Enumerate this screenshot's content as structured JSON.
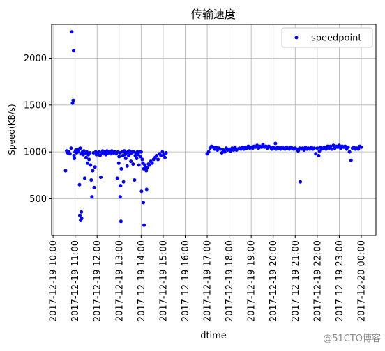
{
  "chart_data": {
    "type": "scatter",
    "title": "传输速度",
    "xlabel": "dtime",
    "ylabel": "Speed(KB/s)",
    "xlim": [
      "2017-12-19 09:56",
      "2017-12-20 00:40"
    ],
    "ylim": [
      110,
      2360
    ],
    "yticks": [
      500,
      1000,
      1500,
      2000
    ],
    "xticks": [
      "2017-12-19 10:00",
      "2017-12-19 11:00",
      "2017-12-19 12:00",
      "2017-12-19 13:00",
      "2017-12-19 14:00",
      "2017-12-19 15:00",
      "2017-12-19 16:00",
      "2017-12-19 17:00",
      "2017-12-19 18:00",
      "2017-12-19 19:00",
      "2017-12-19 20:00",
      "2017-12-19 21:00",
      "2017-12-19 22:00",
      "2017-12-19 23:00",
      "2017-12-20 00:00"
    ],
    "grid": true,
    "legend_position": "top-right",
    "marker_color": "#0000ff",
    "series": [
      {
        "name": "speedpoint",
        "points": [
          [
            "2017-12-19 10:34",
            800
          ],
          [
            "2017-12-19 10:37",
            1010
          ],
          [
            "2017-12-19 10:40",
            990
          ],
          [
            "2017-12-19 10:43",
            1000
          ],
          [
            "2017-12-19 10:46",
            980
          ],
          [
            "2017-12-19 10:49",
            1040
          ],
          [
            "2017-12-19 10:51",
            2280
          ],
          [
            "2017-12-19 10:53",
            1520
          ],
          [
            "2017-12-19 10:55",
            1550
          ],
          [
            "2017-12-19 10:56",
            2080
          ],
          [
            "2017-12-19 10:57",
            960
          ],
          [
            "2017-12-19 10:58",
            930
          ],
          [
            "2017-12-19 11:00",
            1000
          ],
          [
            "2017-12-19 11:02",
            1020
          ],
          [
            "2017-12-19 11:04",
            990
          ],
          [
            "2017-12-19 11:06",
            1010
          ],
          [
            "2017-12-19 11:08",
            1000
          ],
          [
            "2017-12-19 11:10",
            1030
          ],
          [
            "2017-12-19 11:12",
            650
          ],
          [
            "2017-12-19 11:13",
            320
          ],
          [
            "2017-12-19 11:14",
            1040
          ],
          [
            "2017-12-19 11:15",
            270
          ],
          [
            "2017-12-19 11:16",
            980
          ],
          [
            "2017-12-19 11:17",
            360
          ],
          [
            "2017-12-19 11:18",
            290
          ],
          [
            "2017-12-19 11:20",
            1000
          ],
          [
            "2017-12-19 11:22",
            970
          ],
          [
            "2017-12-19 11:24",
            1010
          ],
          [
            "2017-12-19 11:26",
            720
          ],
          [
            "2017-12-19 11:28",
            990
          ],
          [
            "2017-12-19 11:30",
            940
          ],
          [
            "2017-12-19 11:32",
            1000
          ],
          [
            "2017-12-19 11:34",
            880
          ],
          [
            "2017-12-19 11:36",
            970
          ],
          [
            "2017-12-19 11:38",
            920
          ],
          [
            "2017-12-19 11:40",
            990
          ],
          [
            "2017-12-19 11:42",
            860
          ],
          [
            "2017-12-19 11:44",
            700
          ],
          [
            "2017-12-19 11:46",
            520
          ],
          [
            "2017-12-19 11:48",
            800
          ],
          [
            "2017-12-19 11:50",
            990
          ],
          [
            "2017-12-19 11:52",
            620
          ],
          [
            "2017-12-19 11:54",
            840
          ],
          [
            "2017-12-19 11:56",
            1000
          ],
          [
            "2017-12-19 11:58",
            970
          ],
          [
            "2017-12-19 12:02",
            980
          ],
          [
            "2017-12-19 12:05",
            1000
          ],
          [
            "2017-12-19 12:08",
            960
          ],
          [
            "2017-12-19 12:10",
            730
          ],
          [
            "2017-12-19 12:12",
            990
          ],
          [
            "2017-12-19 12:15",
            1010
          ],
          [
            "2017-12-19 12:18",
            980
          ],
          [
            "2017-12-19 12:21",
            1000
          ],
          [
            "2017-12-19 12:24",
            970
          ],
          [
            "2017-12-19 12:27",
            1010
          ],
          [
            "2017-12-19 12:30",
            990
          ],
          [
            "2017-12-19 12:34",
            1000
          ],
          [
            "2017-12-19 12:37",
            980
          ],
          [
            "2017-12-19 12:40",
            1010
          ],
          [
            "2017-12-19 12:44",
            990
          ],
          [
            "2017-12-19 12:48",
            1000
          ],
          [
            "2017-12-19 12:52",
            980
          ],
          [
            "2017-12-19 12:55",
            720
          ],
          [
            "2017-12-19 12:57",
            1000
          ],
          [
            "2017-12-19 12:59",
            880
          ],
          [
            "2017-12-19 13:00",
            950
          ],
          [
            "2017-12-19 13:02",
            990
          ],
          [
            "2017-12-19 13:03",
            520
          ],
          [
            "2017-12-19 13:04",
            640
          ],
          [
            "2017-12-19 13:05",
            260
          ],
          [
            "2017-12-19 13:06",
            820
          ],
          [
            "2017-12-19 13:08",
            1000
          ],
          [
            "2017-12-19 13:10",
            960
          ],
          [
            "2017-12-19 13:12",
            680
          ],
          [
            "2017-12-19 13:14",
            1010
          ],
          [
            "2017-12-19 13:16",
            970
          ],
          [
            "2017-12-19 13:18",
            930
          ],
          [
            "2017-12-19 13:20",
            990
          ],
          [
            "2017-12-19 13:22",
            850
          ],
          [
            "2017-12-19 13:24",
            1000
          ],
          [
            "2017-12-19 13:26",
            960
          ],
          [
            "2017-12-19 13:28",
            1010
          ],
          [
            "2017-12-19 13:30",
            980
          ],
          [
            "2017-12-19 13:32",
            900
          ],
          [
            "2017-12-19 13:34",
            990
          ],
          [
            "2017-12-19 13:36",
            1000
          ],
          [
            "2017-12-19 13:38",
            870
          ],
          [
            "2017-12-19 13:40",
            1000
          ],
          [
            "2017-12-19 13:42",
            700
          ],
          [
            "2017-12-19 13:44",
            960
          ],
          [
            "2017-12-19 13:46",
            990
          ],
          [
            "2017-12-19 13:48",
            930
          ],
          [
            "2017-12-19 13:50",
            1000
          ],
          [
            "2017-12-19 13:52",
            970
          ],
          [
            "2017-12-19 13:54",
            860
          ],
          [
            "2017-12-19 13:56",
            1000
          ],
          [
            "2017-12-19 13:58",
            950
          ],
          [
            "2017-12-19 14:00",
            1000
          ],
          [
            "2017-12-19 14:01",
            580
          ],
          [
            "2017-12-19 14:03",
            920
          ],
          [
            "2017-12-19 14:05",
            880
          ],
          [
            "2017-12-19 14:06",
            460
          ],
          [
            "2017-12-19 14:07",
            820
          ],
          [
            "2017-12-19 14:08",
            220
          ],
          [
            "2017-12-19 14:10",
            860
          ],
          [
            "2017-12-19 14:12",
            840
          ],
          [
            "2017-12-19 14:14",
            800
          ],
          [
            "2017-12-19 14:15",
            600
          ],
          [
            "2017-12-19 14:17",
            830
          ],
          [
            "2017-12-19 14:20",
            870
          ],
          [
            "2017-12-19 14:23",
            860
          ],
          [
            "2017-12-19 14:26",
            900
          ],
          [
            "2017-12-19 14:30",
            880
          ],
          [
            "2017-12-19 14:34",
            920
          ],
          [
            "2017-12-19 14:38",
            940
          ],
          [
            "2017-12-19 14:42",
            960
          ],
          [
            "2017-12-19 14:46",
            920
          ],
          [
            "2017-12-19 14:50",
            980
          ],
          [
            "2017-12-19 14:54",
            960
          ],
          [
            "2017-12-19 14:58",
            1000
          ],
          [
            "2017-12-19 15:02",
            970
          ],
          [
            "2017-12-19 15:05",
            940
          ],
          [
            "2017-12-19 15:08",
            990
          ],
          [
            "2017-12-19 17:00",
            980
          ],
          [
            "2017-12-19 17:04",
            1000
          ],
          [
            "2017-12-19 17:08",
            1040
          ],
          [
            "2017-12-19 17:12",
            1060
          ],
          [
            "2017-12-19 17:16",
            1050
          ],
          [
            "2017-12-19 17:20",
            1030
          ],
          [
            "2017-12-19 17:24",
            1050
          ],
          [
            "2017-12-19 17:28",
            1020
          ],
          [
            "2017-12-19 17:32",
            1040
          ],
          [
            "2017-12-19 17:36",
            1030
          ],
          [
            "2017-12-19 17:40",
            990
          ],
          [
            "2017-12-19 17:44",
            1020
          ],
          [
            "2017-12-19 17:48",
            1000
          ],
          [
            "2017-12-19 17:52",
            1040
          ],
          [
            "2017-12-19 17:56",
            1020
          ],
          [
            "2017-12-19 18:00",
            1030
          ],
          [
            "2017-12-19 18:04",
            1010
          ],
          [
            "2017-12-19 18:08",
            1040
          ],
          [
            "2017-12-19 18:12",
            1020
          ],
          [
            "2017-12-19 18:16",
            1050
          ],
          [
            "2017-12-19 18:20",
            1020
          ],
          [
            "2017-12-19 18:24",
            1030
          ],
          [
            "2017-12-19 18:28",
            1040
          ],
          [
            "2017-12-19 18:32",
            1030
          ],
          [
            "2017-12-19 18:36",
            1050
          ],
          [
            "2017-12-19 18:40",
            1030
          ],
          [
            "2017-12-19 18:44",
            1050
          ],
          [
            "2017-12-19 18:48",
            1040
          ],
          [
            "2017-12-19 18:52",
            1060
          ],
          [
            "2017-12-19 18:56",
            1040
          ],
          [
            "2017-12-19 19:00",
            1050
          ],
          [
            "2017-12-19 19:04",
            1040
          ],
          [
            "2017-12-19 19:08",
            1060
          ],
          [
            "2017-12-19 19:12",
            1050
          ],
          [
            "2017-12-19 19:16",
            1070
          ],
          [
            "2017-12-19 19:20",
            1040
          ],
          [
            "2017-12-19 19:24",
            1060
          ],
          [
            "2017-12-19 19:28",
            1050
          ],
          [
            "2017-12-19 19:32",
            1080
          ],
          [
            "2017-12-19 19:36",
            1050
          ],
          [
            "2017-12-19 19:40",
            1060
          ],
          [
            "2017-12-19 19:44",
            1040
          ],
          [
            "2017-12-19 19:48",
            1060
          ],
          [
            "2017-12-19 19:52",
            1050
          ],
          [
            "2017-12-19 19:56",
            1030
          ],
          [
            "2017-12-19 20:00",
            1050
          ],
          [
            "2017-12-19 20:04",
            1040
          ],
          [
            "2017-12-19 20:06",
            1090
          ],
          [
            "2017-12-19 20:08",
            1030
          ],
          [
            "2017-12-19 20:12",
            1050
          ],
          [
            "2017-12-19 20:16",
            1040
          ],
          [
            "2017-12-19 20:20",
            1030
          ],
          [
            "2017-12-19 20:24",
            1050
          ],
          [
            "2017-12-19 20:28",
            1040
          ],
          [
            "2017-12-19 20:32",
            1030
          ],
          [
            "2017-12-19 20:36",
            1050
          ],
          [
            "2017-12-19 20:40",
            1040
          ],
          [
            "2017-12-19 20:44",
            1030
          ],
          [
            "2017-12-19 20:48",
            1050
          ],
          [
            "2017-12-19 20:52",
            1040
          ],
          [
            "2017-12-19 20:56",
            1030
          ],
          [
            "2017-12-19 21:00",
            1040
          ],
          [
            "2017-12-19 21:04",
            1030
          ],
          [
            "2017-12-19 21:08",
            1010
          ],
          [
            "2017-12-19 21:12",
            1040
          ],
          [
            "2017-12-19 21:14",
            680
          ],
          [
            "2017-12-19 21:16",
            1030
          ],
          [
            "2017-12-19 21:20",
            1040
          ],
          [
            "2017-12-19 21:24",
            1020
          ],
          [
            "2017-12-19 21:28",
            1050
          ],
          [
            "2017-12-19 21:32",
            1030
          ],
          [
            "2017-12-19 21:36",
            1040
          ],
          [
            "2017-12-19 21:40",
            1030
          ],
          [
            "2017-12-19 21:44",
            1050
          ],
          [
            "2017-12-19 21:48",
            1030
          ],
          [
            "2017-12-19 21:52",
            1040
          ],
          [
            "2017-12-19 21:56",
            980
          ],
          [
            "2017-12-19 22:00",
            1040
          ],
          [
            "2017-12-19 22:04",
            960
          ],
          [
            "2017-12-19 22:06",
            1010
          ],
          [
            "2017-12-19 22:08",
            1050
          ],
          [
            "2017-12-19 22:12",
            1030
          ],
          [
            "2017-12-19 22:16",
            1040
          ],
          [
            "2017-12-19 22:20",
            1050
          ],
          [
            "2017-12-19 22:24",
            1030
          ],
          [
            "2017-12-19 22:28",
            1060
          ],
          [
            "2017-12-19 22:32",
            1040
          ],
          [
            "2017-12-19 22:36",
            1060
          ],
          [
            "2017-12-19 22:40",
            1030
          ],
          [
            "2017-12-19 22:44",
            1070
          ],
          [
            "2017-12-19 22:48",
            1040
          ],
          [
            "2017-12-19 22:52",
            1060
          ],
          [
            "2017-12-19 22:56",
            1050
          ],
          [
            "2017-12-19 23:00",
            1070
          ],
          [
            "2017-12-19 23:04",
            1040
          ],
          [
            "2017-12-19 23:08",
            1060
          ],
          [
            "2017-12-19 23:12",
            1050
          ],
          [
            "2017-12-19 23:16",
            1060
          ],
          [
            "2017-12-19 23:20",
            1030
          ],
          [
            "2017-12-19 23:24",
            1050
          ],
          [
            "2017-12-19 23:28",
            1000
          ],
          [
            "2017-12-19 23:32",
            910
          ],
          [
            "2017-12-19 23:36",
            1040
          ],
          [
            "2017-12-19 23:40",
            1050
          ],
          [
            "2017-12-19 23:44",
            1030
          ],
          [
            "2017-12-19 23:48",
            1040
          ],
          [
            "2017-12-19 23:52",
            1030
          ],
          [
            "2017-12-19 23:56",
            1060
          ],
          [
            "2017-12-20 00:00",
            1050
          ]
        ]
      }
    ]
  },
  "watermark": "@51CTO博客"
}
